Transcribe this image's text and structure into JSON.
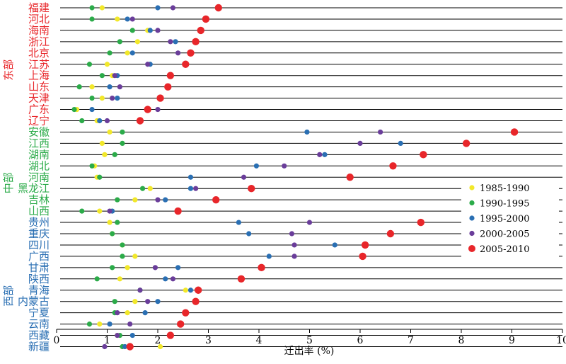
{
  "chart_data": {
    "type": "scatter",
    "xlabel": "迁出率 (%)",
    "xlim": [
      0,
      10
    ],
    "xticks": [
      0,
      1,
      2,
      3,
      4,
      5,
      6,
      7,
      8,
      9,
      10
    ],
    "series": [
      {
        "name": "1985-1990",
        "color": "#f2e82a"
      },
      {
        "name": "1990-1995",
        "color": "#2bab49"
      },
      {
        "name": "1995-2000",
        "color": "#2a6fb3"
      },
      {
        "name": "2000-2005",
        "color": "#6a3d9a"
      },
      {
        "name": "2005-2010",
        "color": "#e8262a"
      }
    ],
    "regions": [
      {
        "label": "东部",
        "color": "#e8262a",
        "first": 0,
        "last": 11
      },
      {
        "label": "中部",
        "color": "#2bab49",
        "first": 12,
        "last": 19
      },
      {
        "label": "西部",
        "color": "#2a6fb3",
        "first": 20,
        "last": 31
      }
    ],
    "provinces": [
      {
        "name": "福建",
        "color": "#e8262a",
        "values": [
          0.9,
          0.7,
          2.0,
          2.3,
          3.2
        ]
      },
      {
        "name": "河北",
        "color": "#e8262a",
        "values": [
          1.2,
          0.7,
          1.4,
          1.5,
          2.95
        ]
      },
      {
        "name": "海南",
        "color": "#e8262a",
        "values": [
          1.8,
          1.5,
          1.85,
          2.0,
          2.85
        ]
      },
      {
        "name": "浙江",
        "color": "#e8262a",
        "values": [
          1.6,
          1.25,
          2.35,
          2.25,
          2.75
        ]
      },
      {
        "name": "北京",
        "color": "#e8262a",
        "values": [
          1.4,
          1.05,
          1.5,
          2.4,
          2.65
        ]
      },
      {
        "name": "江苏",
        "color": "#e8262a",
        "values": [
          1.0,
          0.65,
          1.85,
          1.8,
          2.55
        ]
      },
      {
        "name": "上海",
        "color": "#e8262a",
        "values": [
          1.1,
          0.9,
          1.2,
          1.15,
          2.25
        ]
      },
      {
        "name": "山东",
        "color": "#e8262a",
        "values": [
          0.7,
          0.45,
          1.05,
          1.25,
          2.2
        ]
      },
      {
        "name": "天津",
        "color": "#e8262a",
        "values": [
          0.9,
          0.7,
          1.2,
          1.1,
          2.05
        ]
      },
      {
        "name": "广东",
        "color": "#e8262a",
        "values": [
          0.4,
          0.35,
          0.7,
          2.0,
          1.8
        ]
      },
      {
        "name": "辽宁",
        "color": "#e8262a",
        "values": [
          0.8,
          0.5,
          0.85,
          1.0,
          1.65
        ]
      },
      {
        "name": "安徽",
        "color": "#2bab49",
        "values": [
          1.05,
          1.3,
          4.95,
          6.4,
          9.05
        ]
      },
      {
        "name": "江西",
        "color": "#2bab49",
        "values": [
          0.9,
          1.3,
          6.8,
          6.0,
          8.1
        ]
      },
      {
        "name": "湖南",
        "color": "#2bab49",
        "values": [
          0.95,
          1.15,
          5.3,
          5.2,
          7.25
        ]
      },
      {
        "name": "湖北",
        "color": "#2bab49",
        "values": [
          0.75,
          0.7,
          3.95,
          4.5,
          6.65
        ]
      },
      {
        "name": "河南",
        "color": "#2bab49",
        "values": [
          0.8,
          0.85,
          2.65,
          3.7,
          5.8
        ]
      },
      {
        "name": "黑龙江",
        "color": "#2bab49",
        "values": [
          1.85,
          1.7,
          2.65,
          2.75,
          3.85
        ]
      },
      {
        "name": "吉林",
        "color": "#2bab49",
        "values": [
          1.55,
          1.2,
          2.15,
          2.0,
          3.15
        ]
      },
      {
        "name": "山西",
        "color": "#2bab49",
        "values": [
          0.85,
          0.5,
          1.1,
          1.05,
          2.4
        ]
      },
      {
        "name": "贵州",
        "color": "#2a6fb3",
        "values": [
          1.05,
          1.2,
          3.6,
          5.0,
          7.2
        ]
      },
      {
        "name": "重庆",
        "color": "#2a6fb3",
        "values": [
          1.1,
          1.1,
          3.8,
          4.65,
          6.6
        ]
      },
      {
        "name": "四川",
        "color": "#2a6fb3",
        "values": [
          1.3,
          1.3,
          5.5,
          4.7,
          6.1
        ]
      },
      {
        "name": "广西",
        "color": "#2a6fb3",
        "values": [
          1.55,
          1.3,
          4.2,
          4.7,
          6.05
        ]
      },
      {
        "name": "甘肃",
        "color": "#2a6fb3",
        "values": [
          1.4,
          1.1,
          2.4,
          1.95,
          4.05
        ]
      },
      {
        "name": "陕西",
        "color": "#2a6fb3",
        "values": [
          1.25,
          0.8,
          2.15,
          2.3,
          3.65
        ]
      },
      {
        "name": "青海",
        "color": "#2a6fb3",
        "values": [
          2.55,
          1.65,
          2.65,
          1.65,
          2.8
        ]
      },
      {
        "name": "内蒙古",
        "color": "#2a6fb3",
        "values": [
          1.55,
          1.15,
          2.0,
          1.8,
          2.75
        ]
      },
      {
        "name": "宁夏",
        "color": "#2a6fb3",
        "values": [
          1.4,
          1.15,
          1.75,
          1.2,
          2.55
        ]
      },
      {
        "name": "云南",
        "color": "#2a6fb3",
        "values": [
          0.85,
          0.65,
          1.05,
          1.45,
          2.45
        ]
      },
      {
        "name": "西藏",
        "color": "#2a6fb3",
        "values": [
          1.2,
          1.25,
          1.5,
          1.2,
          2.25
        ]
      },
      {
        "name": "新疆",
        "color": "#2a6fb3",
        "values": [
          2.05,
          1.3,
          1.35,
          0.95,
          1.45
        ]
      }
    ]
  }
}
